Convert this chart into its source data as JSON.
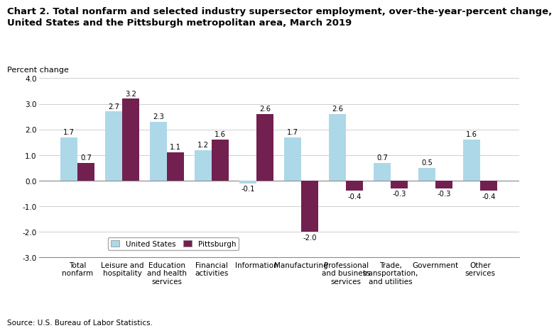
{
  "title_line1": "Chart 2. Total nonfarm and selected industry supersector employment, over-the-year-percent change,",
  "title_line2": "United States and the Pittsburgh metropolitan area, March 2019",
  "ylabel": "Percent change",
  "source": "Source: U.S. Bureau of Labor Statistics.",
  "categories": [
    "Total\nnonfarm",
    "Leisure and\nhospitality",
    "Education\nand health\nservices",
    "Financial\nactivities",
    "Information",
    "Manufacturing",
    "Professional\nand business\nservices",
    "Trade,\ntransportation,\nand utilities",
    "Government",
    "Other\nservices"
  ],
  "us_values": [
    1.7,
    2.7,
    2.3,
    1.2,
    -0.1,
    1.7,
    2.6,
    0.7,
    0.5,
    1.6
  ],
  "pitt_values": [
    0.7,
    3.2,
    1.1,
    1.6,
    2.6,
    -2.0,
    -0.4,
    -0.3,
    -0.3,
    -0.4
  ],
  "us_color": "#add8e8",
  "pitt_color": "#722050",
  "ylim": [
    -3.0,
    4.0
  ],
  "yticks": [
    -3.0,
    -2.0,
    -1.0,
    0.0,
    1.0,
    2.0,
    3.0,
    4.0
  ],
  "bar_width": 0.38,
  "legend_labels": [
    "United States",
    "Pittsburgh"
  ],
  "title_fontsize": 9.5,
  "label_fontsize": 8,
  "tick_fontsize": 7.5,
  "value_fontsize": 7.2
}
